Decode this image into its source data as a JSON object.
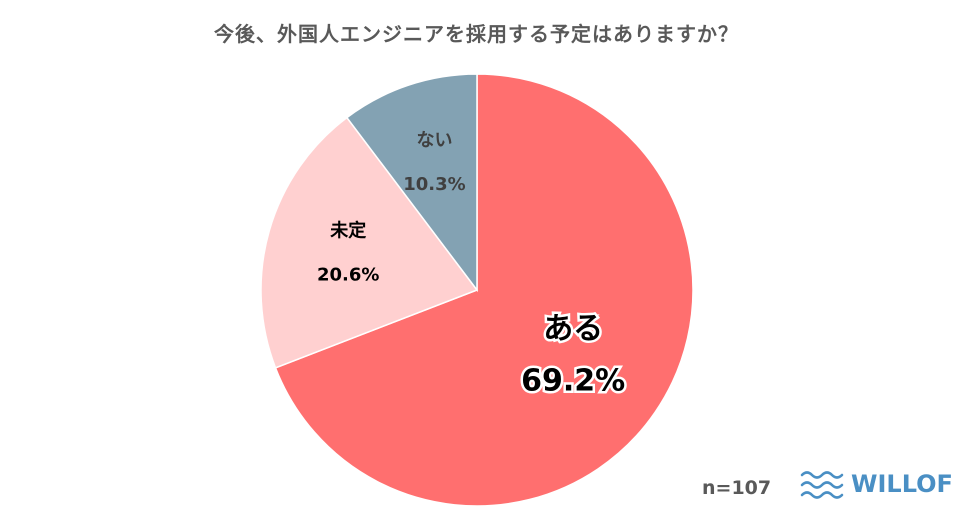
{
  "title": "今後、外国人エンジニアを採用する予定はありますか？",
  "sample_size": "n=107",
  "brand": "WILLOF",
  "colors": {
    "brand": "#4a8fc4",
    "text": "#595959"
  },
  "chart_data": {
    "type": "pie",
    "title": "今後、外国人エンジニアを採用する予定はありますか？",
    "slices": [
      {
        "label": "ある",
        "value": 69.2,
        "value_label": "69.2%",
        "color": "#ff6f6f",
        "text_color": "#000000"
      },
      {
        "label": "未定",
        "value": 20.6,
        "value_label": "20.6%",
        "color": "#ffd0d0",
        "text_color": "#000000"
      },
      {
        "label": "ない",
        "value": 10.3,
        "value_label": "10.3%",
        "color": "#83a2b3",
        "text_color": "#404040"
      }
    ]
  }
}
